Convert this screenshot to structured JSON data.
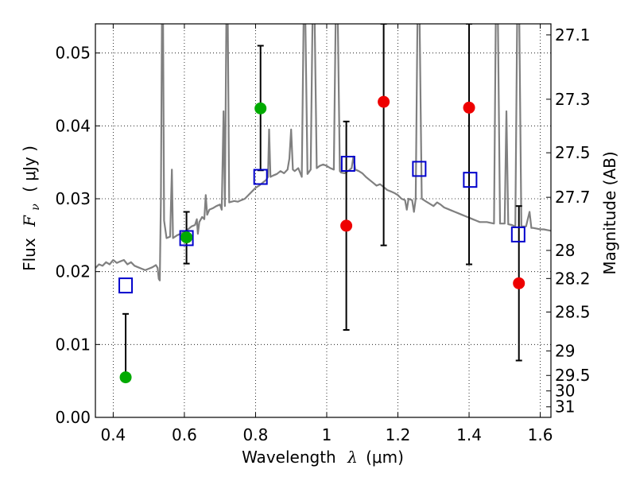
{
  "chart_data": {
    "type": "scatter",
    "xlabel": {
      "text": "Wavelength",
      "symbol": "λ",
      "unit": "(μm)"
    },
    "ylabel": {
      "text": "Flux",
      "symbol": "F",
      "subscript": "ν",
      "unit": "( μJy )"
    },
    "y2label": "Magnitude (AB)",
    "xlim": [
      0.35,
      1.63
    ],
    "ylim": [
      0.0,
      0.054
    ],
    "grid": true,
    "xticks": [
      {
        "value": 0.4,
        "label": "0.4"
      },
      {
        "value": 0.6,
        "label": "0.6"
      },
      {
        "value": 0.8,
        "label": "0.8"
      },
      {
        "value": 1.0,
        "label": "1"
      },
      {
        "value": 1.2,
        "label": "1.2"
      },
      {
        "value": 1.4,
        "label": "1.4"
      },
      {
        "value": 1.6,
        "label": "1.6"
      }
    ],
    "yticks": [
      {
        "value": 0.0,
        "label": "0.00"
      },
      {
        "value": 0.01,
        "label": "0.01"
      },
      {
        "value": 0.02,
        "label": "0.02"
      },
      {
        "value": 0.03,
        "label": "0.03"
      },
      {
        "value": 0.04,
        "label": "0.04"
      },
      {
        "value": 0.05,
        "label": "0.05"
      }
    ],
    "y2ticks": [
      {
        "mag": 27.1,
        "label": "27.1"
      },
      {
        "mag": 27.3,
        "label": "27.3"
      },
      {
        "mag": 27.5,
        "label": "27.5"
      },
      {
        "mag": 27.7,
        "label": "27.7"
      },
      {
        "mag": 28.0,
        "label": "28"
      },
      {
        "mag": 28.2,
        "label": "28.2"
      },
      {
        "mag": 28.5,
        "label": "28.5"
      },
      {
        "mag": 29.0,
        "label": "29"
      },
      {
        "mag": 29.5,
        "label": "29.5"
      },
      {
        "mag": 30.0,
        "label": "30"
      },
      {
        "mag": 31.0,
        "label": "31"
      }
    ],
    "colors": {
      "model": "#808080",
      "green_points": "#00aa00",
      "red_points": "#ee0000",
      "model_boxes": "#0000cc",
      "errorbars": "#000000"
    },
    "observed": [
      {
        "x": 0.435,
        "y": 0.0055,
        "yerr_low": 0.0055,
        "yerr_high": 0.0142,
        "color": "green"
      },
      {
        "x": 0.606,
        "y": 0.0247,
        "yerr_low": 0.0211,
        "yerr_high": 0.0282,
        "color": "green"
      },
      {
        "x": 0.814,
        "y": 0.0424,
        "yerr_low": 0.0339,
        "yerr_high": 0.051,
        "color": "green"
      },
      {
        "x": 1.055,
        "y": 0.0263,
        "yerr_low": 0.012,
        "yerr_high": 0.0406,
        "color": "red"
      },
      {
        "x": 1.16,
        "y": 0.0433,
        "yerr_low": 0.0236,
        "yerr_high": 0.054,
        "color": "red"
      },
      {
        "x": 1.4,
        "y": 0.0425,
        "yerr_low": 0.021,
        "yerr_high": 0.054,
        "color": "red"
      },
      {
        "x": 1.54,
        "y": 0.0184,
        "yerr_low": 0.0078,
        "yerr_high": 0.029,
        "color": "red"
      }
    ],
    "model_photometry": [
      {
        "x": 0.435,
        "y": 0.0181
      },
      {
        "x": 0.606,
        "y": 0.0246
      },
      {
        "x": 0.814,
        "y": 0.033
      },
      {
        "x": 1.06,
        "y": 0.0348
      },
      {
        "x": 1.26,
        "y": 0.0341
      },
      {
        "x": 1.403,
        "y": 0.0326
      },
      {
        "x": 1.538,
        "y": 0.0251
      }
    ],
    "model_spectrum": [
      [
        0.35,
        0.0205
      ],
      [
        0.36,
        0.021
      ],
      [
        0.37,
        0.0208
      ],
      [
        0.38,
        0.0213
      ],
      [
        0.39,
        0.021
      ],
      [
        0.4,
        0.0216
      ],
      [
        0.41,
        0.0212
      ],
      [
        0.42,
        0.0214
      ],
      [
        0.43,
        0.0216
      ],
      [
        0.44,
        0.021
      ],
      [
        0.45,
        0.0213
      ],
      [
        0.46,
        0.0208
      ],
      [
        0.47,
        0.0206
      ],
      [
        0.48,
        0.0204
      ],
      [
        0.49,
        0.0202
      ],
      [
        0.5,
        0.0204
      ],
      [
        0.51,
        0.0206
      ],
      [
        0.52,
        0.0209
      ],
      [
        0.525,
        0.0205
      ],
      [
        0.528,
        0.019
      ],
      [
        0.531,
        0.0188
      ],
      [
        0.534,
        0.03
      ],
      [
        0.537,
        0.0545
      ],
      [
        0.54,
        0.0545
      ],
      [
        0.543,
        0.027
      ],
      [
        0.55,
        0.0246
      ],
      [
        0.56,
        0.0248
      ],
      [
        0.565,
        0.034
      ],
      [
        0.568,
        0.0246
      ],
      [
        0.58,
        0.025
      ],
      [
        0.59,
        0.0252
      ],
      [
        0.6,
        0.0255
      ],
      [
        0.61,
        0.0258
      ],
      [
        0.62,
        0.0262
      ],
      [
        0.63,
        0.0264
      ],
      [
        0.635,
        0.0272
      ],
      [
        0.638,
        0.0252
      ],
      [
        0.642,
        0.0268
      ],
      [
        0.65,
        0.0275
      ],
      [
        0.656,
        0.0272
      ],
      [
        0.66,
        0.0305
      ],
      [
        0.664,
        0.0278
      ],
      [
        0.67,
        0.0285
      ],
      [
        0.68,
        0.0287
      ],
      [
        0.69,
        0.029
      ],
      [
        0.7,
        0.0292
      ],
      [
        0.705,
        0.0285
      ],
      [
        0.71,
        0.042
      ],
      [
        0.714,
        0.029
      ],
      [
        0.718,
        0.0545
      ],
      [
        0.722,
        0.0545
      ],
      [
        0.726,
        0.0295
      ],
      [
        0.74,
        0.0297
      ],
      [
        0.75,
        0.0296
      ],
      [
        0.76,
        0.0298
      ],
      [
        0.77,
        0.03
      ],
      [
        0.78,
        0.0305
      ],
      [
        0.79,
        0.031
      ],
      [
        0.8,
        0.0315
      ],
      [
        0.81,
        0.0318
      ],
      [
        0.82,
        0.0322
      ],
      [
        0.83,
        0.0326
      ],
      [
        0.835,
        0.033
      ],
      [
        0.838,
        0.0395
      ],
      [
        0.842,
        0.033
      ],
      [
        0.85,
        0.0332
      ],
      [
        0.86,
        0.0334
      ],
      [
        0.87,
        0.0338
      ],
      [
        0.88,
        0.0335
      ],
      [
        0.89,
        0.034
      ],
      [
        0.895,
        0.0355
      ],
      [
        0.9,
        0.0395
      ],
      [
        0.905,
        0.034
      ],
      [
        0.91,
        0.0338
      ],
      [
        0.92,
        0.0342
      ],
      [
        0.93,
        0.033
      ],
      [
        0.935,
        0.0545
      ],
      [
        0.94,
        0.0545
      ],
      [
        0.946,
        0.0334
      ],
      [
        0.955,
        0.034
      ],
      [
        0.96,
        0.0545
      ],
      [
        0.966,
        0.0545
      ],
      [
        0.972,
        0.0342
      ],
      [
        0.98,
        0.0345
      ],
      [
        0.99,
        0.0347
      ],
      [
        1.0,
        0.0345
      ],
      [
        1.01,
        0.0342
      ],
      [
        1.02,
        0.034
      ],
      [
        1.025,
        0.0545
      ],
      [
        1.031,
        0.0545
      ],
      [
        1.037,
        0.0338
      ],
      [
        1.04,
        0.0336
      ],
      [
        1.05,
        0.0335
      ],
      [
        1.06,
        0.0338
      ],
      [
        1.07,
        0.0342
      ],
      [
        1.075,
        0.0358
      ],
      [
        1.08,
        0.034
      ],
      [
        1.09,
        0.0338
      ],
      [
        1.1,
        0.0335
      ],
      [
        1.11,
        0.033
      ],
      [
        1.12,
        0.0326
      ],
      [
        1.13,
        0.0322
      ],
      [
        1.14,
        0.0318
      ],
      [
        1.15,
        0.032
      ],
      [
        1.16,
        0.0316
      ],
      [
        1.17,
        0.0312
      ],
      [
        1.18,
        0.031
      ],
      [
        1.19,
        0.0308
      ],
      [
        1.2,
        0.0305
      ],
      [
        1.21,
        0.03
      ],
      [
        1.22,
        0.0298
      ],
      [
        1.225,
        0.0285
      ],
      [
        1.23,
        0.03
      ],
      [
        1.24,
        0.0298
      ],
      [
        1.245,
        0.0282
      ],
      [
        1.25,
        0.03
      ],
      [
        1.255,
        0.0545
      ],
      [
        1.261,
        0.0545
      ],
      [
        1.267,
        0.03
      ],
      [
        1.28,
        0.0296
      ],
      [
        1.29,
        0.0293
      ],
      [
        1.3,
        0.029
      ],
      [
        1.31,
        0.0295
      ],
      [
        1.32,
        0.0292
      ],
      [
        1.33,
        0.0288
      ],
      [
        1.34,
        0.0286
      ],
      [
        1.35,
        0.0284
      ],
      [
        1.36,
        0.0282
      ],
      [
        1.37,
        0.028
      ],
      [
        1.38,
        0.0278
      ],
      [
        1.39,
        0.0276
      ],
      [
        1.4,
        0.0274
      ],
      [
        1.41,
        0.0272
      ],
      [
        1.42,
        0.027
      ],
      [
        1.43,
        0.0268
      ],
      [
        1.44,
        0.0268
      ],
      [
        1.45,
        0.0268
      ],
      [
        1.46,
        0.0267
      ],
      [
        1.47,
        0.0266
      ],
      [
        1.475,
        0.0545
      ],
      [
        1.481,
        0.0545
      ],
      [
        1.487,
        0.0266
      ],
      [
        1.5,
        0.0266
      ],
      [
        1.505,
        0.042
      ],
      [
        1.51,
        0.0265
      ],
      [
        1.52,
        0.0264
      ],
      [
        1.53,
        0.0262
      ],
      [
        1.535,
        0.0545
      ],
      [
        1.541,
        0.0545
      ],
      [
        1.547,
        0.0262
      ],
      [
        1.56,
        0.0262
      ],
      [
        1.57,
        0.0282
      ],
      [
        1.575,
        0.026
      ],
      [
        1.58,
        0.026
      ],
      [
        1.59,
        0.0259
      ],
      [
        1.6,
        0.0258
      ],
      [
        1.61,
        0.0258
      ],
      [
        1.62,
        0.0257
      ],
      [
        1.63,
        0.0256
      ]
    ]
  }
}
